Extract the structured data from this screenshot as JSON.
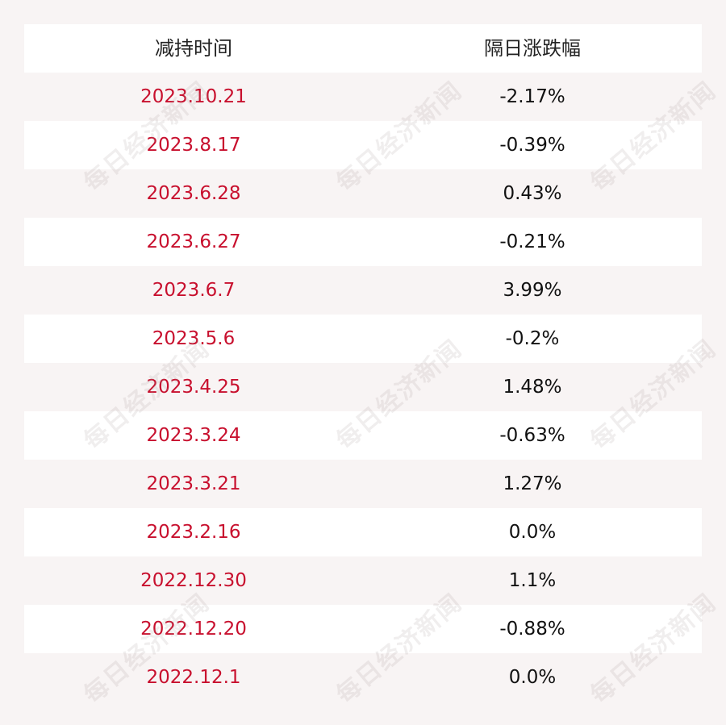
{
  "table": {
    "headers": [
      "减持时间",
      "隔日涨跌幅"
    ],
    "rows": [
      {
        "date": "2023.10.21",
        "change": "-2.17%"
      },
      {
        "date": "2023.8.17",
        "change": "-0.39%"
      },
      {
        "date": "2023.6.28",
        "change": "0.43%"
      },
      {
        "date": "2023.6.27",
        "change": "-0.21%"
      },
      {
        "date": "2023.6.7",
        "change": "3.99%"
      },
      {
        "date": "2023.5.6",
        "change": "-0.2%"
      },
      {
        "date": "2023.4.25",
        "change": "1.48%"
      },
      {
        "date": "2023.3.24",
        "change": "-0.63%"
      },
      {
        "date": "2023.3.21",
        "change": "1.27%"
      },
      {
        "date": "2023.2.16",
        "change": "0.0%"
      },
      {
        "date": "2022.12.30",
        "change": "1.1%"
      },
      {
        "date": "2022.12.20",
        "change": "-0.88%"
      },
      {
        "date": "2022.12.1",
        "change": "0.0%"
      }
    ]
  },
  "watermark": {
    "text": "每日经济新闻"
  },
  "colors": {
    "date_text": "#c8102e",
    "value_text": "#111111",
    "row_white": "#ffffff",
    "row_shade": "#f8f4f4"
  }
}
